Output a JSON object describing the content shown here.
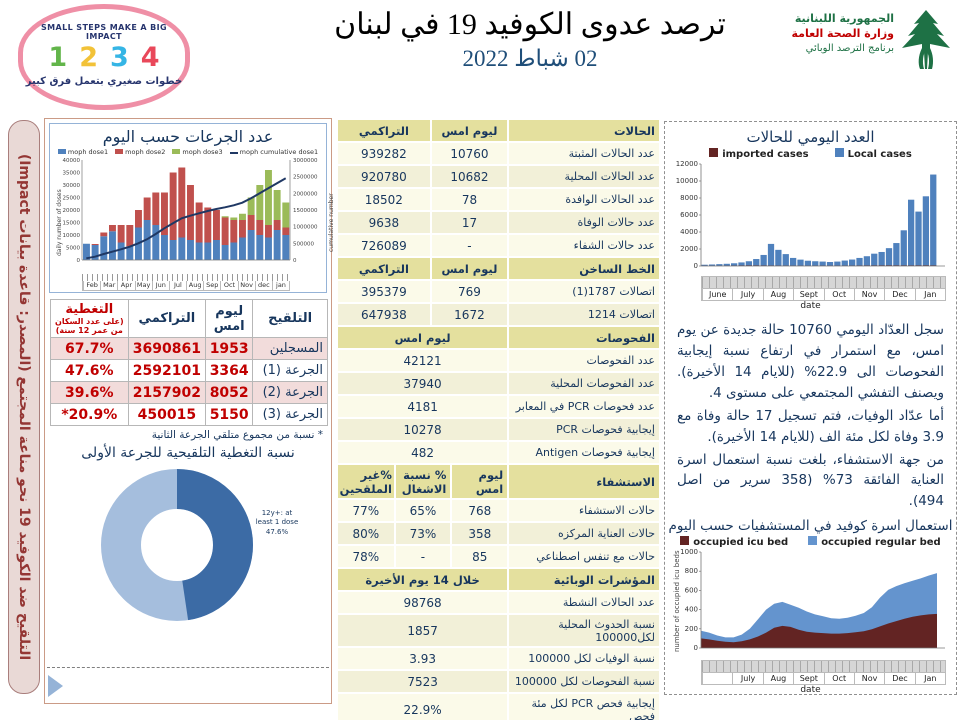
{
  "header": {
    "title": "ترصد عدوى الكوفيد 19 في لبنان",
    "date": "02 شباط 2022",
    "stamp": {
      "top_text": "SMALL STEPS MAKE A BIG IMPACT",
      "digits": [
        "1",
        "2",
        "3",
        "4"
      ],
      "bottom_text": "خطوات صغيري بتعمل فرق كبير"
    },
    "moph": {
      "line1": "الجمهورية اللبنانية",
      "line2": "وزارة الصحة العامة",
      "line3": "برنامج الترصد الوبائي"
    }
  },
  "left_banner": "التلقيح ضد الكوفيد 19  نحو مناعة المجتمع (المصدر: قاعدة بيانات Impact)",
  "vaccination": {
    "chart_title": "عدد الجرعات حسب اليوم",
    "table": {
      "headers": [
        "التلقيح",
        "ليوم امس",
        "التراكمي",
        "التغطية"
      ],
      "coverage_subnote": "(على عدد السكان من عمر 12 سنة)",
      "rows": [
        [
          "المسجلين",
          "1953",
          "3690861",
          "67.7%"
        ],
        [
          "الجرعة (1)",
          "3364",
          "2592101",
          "47.6%"
        ],
        [
          "الجرعة (2)",
          "8052",
          "2157902",
          "39.6%"
        ],
        [
          "الجرعة (3)",
          "5150",
          "450015",
          "20.9%*"
        ]
      ],
      "note": "* نسبة من مجموع متلقي الجرعة الثانية"
    },
    "donut_title": "نسبة التغطية التلقيحية للجرعة الأولى",
    "donut_label": "12y+: at least 1 dose 47.6%"
  },
  "main_table": {
    "sections": [
      {
        "cols": 3,
        "header": [
          "الحالات",
          "ليوم امس",
          "التراكمي"
        ],
        "rows": [
          [
            "عدد الحالات المثبتة",
            "10760",
            "939282"
          ],
          [
            "عدد الحالات المحلية",
            "10682",
            "920780"
          ],
          [
            "عدد الحالات الوافدة",
            "78",
            "18502"
          ],
          [
            "عدد حالات الوفاة",
            "17",
            "9638"
          ],
          [
            "عدد حالات الشفاء",
            "-",
            "726089"
          ]
        ]
      },
      {
        "cols": 3,
        "header": [
          "الخط الساخن",
          "ليوم امس",
          "التراكمي"
        ],
        "rows": [
          [
            "اتصالات 1787(1)",
            "769",
            "395379"
          ],
          [
            "اتصالات 1214",
            "1672",
            "647938"
          ]
        ]
      },
      {
        "cols": 2,
        "header": [
          "الفحوصات",
          "ليوم امس"
        ],
        "rows": [
          [
            "عدد الفحوصات",
            "42121"
          ],
          [
            "عدد الفحوصات المحلية",
            "37940"
          ],
          [
            "عدد فحوصات PCR في المعابر",
            "4181"
          ],
          [
            "إيجابية فحوصات PCR",
            "10278"
          ],
          [
            "إيجابية فحوصات Antigen",
            "482"
          ]
        ]
      },
      {
        "cols": 4,
        "header": [
          "الاستشفاء",
          "ليوم امس",
          "% نسبة الاشغال",
          "%غير الملقحين"
        ],
        "rows": [
          [
            "حالات الاستشفاء",
            "768",
            "65%",
            "77%"
          ],
          [
            "حالات العناية المركزه",
            "358",
            "73%",
            "80%"
          ],
          [
            "حالات مع تنفس اصطناعي",
            "85",
            "-",
            "78%"
          ]
        ]
      },
      {
        "cols": 2,
        "header": [
          "المؤشرات الوبائية",
          "خلال 14 يوم الأخيرة"
        ],
        "rows": [
          [
            "عدد الحالات النشطة",
            "98768"
          ],
          [
            "نسبة الحدوث المحلية لكل100000",
            "1857"
          ],
          [
            "نسبة الوفيات لكل 100000",
            "3.93"
          ],
          [
            "نسبة الفحوصات لكل 100000",
            "7523"
          ],
          [
            "إيجابية فحص PCR لكل مئة فحص",
            "22.9%"
          ]
        ]
      }
    ]
  },
  "right_column": {
    "cases_title": "العدد اليومي للحالات",
    "cases_legend": [
      "imported cases",
      "Local cases"
    ],
    "beds_title": "استعمال اسرة كوفيد في المستشفيات حسب اليوم",
    "beds_legend": [
      "occupied icu bed",
      "occupied regular bed"
    ],
    "date_axis_label": "date",
    "beds_y_label": "number of occupied icu beds"
  },
  "commentary": [
    "سجل العدّاد اليومي 10760 حالة جديدة عن يوم امس، مع استمرار في ارتفاع نسبة إيجابية الفحوصات الى 22.9% (للايام 14 الأخيرة). ويصنف التفشي المجتمعي على مستوى 4.",
    "أما عدّاد الوفيات، فتم تسجيل 17 حالة وفاة مع 3.9 وفاة لكل مئة الف (للايام 14 الأخيرة).",
    "من جهة الاستشفاء، بلغت نسبة استعمال اسرة العناية الفائقة 73% (358 سرير من اصل 494)."
  ],
  "colors": {
    "navy": "#17365d",
    "red": "#c00000",
    "dose1": "#4f81bd",
    "dose2": "#c0504d",
    "dose3": "#9bbb59",
    "cumulative_line": "#1f3864",
    "local_cases": "#4f81bd",
    "imported_cases": "#632423",
    "icu_bed": "#632423",
    "regular_bed": "#6494ce",
    "donut_dark": "#3c6ba5",
    "donut_light": "#a5bedd"
  },
  "chart_data": [
    {
      "id": "doses_by_day",
      "type": "bar",
      "title": "عدد الجرعات حسب اليوم",
      "legend": [
        "moph dose1",
        "moph dose2",
        "moph dose3",
        "moph cumulative dose1"
      ],
      "ylabel_left": "daily number of doses",
      "ylabel_right": "cumulative number",
      "ylim_left": [
        0,
        40000
      ],
      "yticks_left": [
        0,
        5000,
        10000,
        15000,
        20000,
        25000,
        30000,
        35000,
        40000
      ],
      "ylim_right": [
        0,
        3000000
      ],
      "yticks_right": [
        0,
        500000,
        1000000,
        1500000,
        2000000,
        2500000,
        3000000
      ],
      "months": [
        "Feb",
        "Mar",
        "Apr",
        "May",
        "Jun",
        "Jul",
        "Aug",
        "Sep",
        "Oct",
        "Nov",
        "dec",
        "jan"
      ],
      "series": [
        {
          "name": "moph dose1",
          "values": [
            6500,
            6000,
            9500,
            11500,
            7000,
            5500,
            13000,
            16000,
            14000,
            10000,
            8000,
            9000,
            8000,
            7000,
            7000,
            8000,
            6000,
            7000,
            9000,
            12000,
            10000,
            9000,
            12000,
            10000
          ]
        },
        {
          "name": "moph dose2",
          "values": [
            0,
            400,
            1500,
            2500,
            7000,
            8500,
            7000,
            9000,
            13000,
            17000,
            27000,
            28000,
            22000,
            16000,
            14000,
            12000,
            11000,
            9000,
            7000,
            6000,
            6000,
            5000,
            4000,
            3000
          ]
        },
        {
          "name": "moph dose3",
          "values": [
            0,
            0,
            0,
            0,
            0,
            0,
            0,
            0,
            0,
            0,
            0,
            0,
            0,
            0,
            0,
            0,
            500,
            1000,
            2500,
            7000,
            14000,
            22000,
            12000,
            10000
          ]
        },
        {
          "name": "moph cumulative dose1",
          "type": "line",
          "values": [
            50000,
            100000,
            180000,
            250000,
            320000,
            400000,
            500000,
            620000,
            780000,
            950000,
            1100000,
            1250000,
            1330000,
            1400000,
            1470000,
            1530000,
            1580000,
            1640000,
            1720000,
            1850000,
            2000000,
            2150000,
            2300000,
            2450000
          ]
        }
      ]
    },
    {
      "id": "daily_cases",
      "type": "bar",
      "title": "العدد اليومي للحالات",
      "legend": [
        "imported cases",
        "Local cases"
      ],
      "xlabel": "date",
      "ylim": [
        0,
        12000
      ],
      "yticks": [
        0,
        2000,
        4000,
        6000,
        8000,
        10000,
        12000
      ],
      "months": [
        "June",
        "July",
        "Aug",
        "Sept",
        "Oct",
        "Nov",
        "Dec",
        "Jan"
      ],
      "series": [
        {
          "name": "Local cases",
          "values": [
            150,
            180,
            220,
            260,
            320,
            420,
            560,
            820,
            1300,
            2600,
            1900,
            1400,
            950,
            750,
            620,
            560,
            520,
            470,
            520,
            640,
            760,
            950,
            1150,
            1450,
            1650,
            2100,
            2700,
            4200,
            7800,
            6400,
            8200,
            10760
          ]
        },
        {
          "name": "imported cases",
          "values": [
            40,
            35,
            30,
            45,
            60,
            70,
            80,
            75,
            70,
            65,
            60,
            55,
            50,
            45,
            40,
            45,
            50,
            45,
            50,
            55,
            60,
            65,
            70,
            75,
            80,
            85,
            80,
            78,
            75,
            80,
            85,
            78
          ]
        }
      ]
    },
    {
      "id": "occupied_beds",
      "type": "area",
      "title": "استعمال اسرة كوفيد في المستشفيات حسب اليوم",
      "legend": [
        "occupied icu bed",
        "occupied regular bed"
      ],
      "xlabel": "date",
      "ylabel": "number of occupied icu beds",
      "ylim": [
        0,
        1000
      ],
      "yticks": [
        0,
        200,
        400,
        600,
        800,
        1000
      ],
      "months": [
        "",
        "July",
        "Aug",
        "Sept",
        "Oct",
        "Nov",
        "Dec",
        "Jan"
      ],
      "series": [
        {
          "name": "occupied icu bed",
          "values": [
            100,
            90,
            75,
            65,
            60,
            70,
            90,
            120,
            160,
            210,
            230,
            220,
            190,
            170,
            160,
            155,
            150,
            150,
            155,
            165,
            175,
            195,
            225,
            255,
            280,
            305,
            325,
            340,
            350,
            355
          ]
        },
        {
          "name": "occupied regular bed",
          "values": [
            80,
            70,
            55,
            45,
            50,
            70,
            110,
            180,
            240,
            250,
            250,
            230,
            230,
            210,
            190,
            175,
            160,
            155,
            160,
            170,
            190,
            230,
            300,
            350,
            365,
            370,
            375,
            385,
            405,
            425
          ]
        }
      ]
    },
    {
      "id": "first_dose_coverage",
      "type": "pie",
      "title": "نسبة التغطية التلقيحية للجرعة الأولى",
      "labels": [
        "12y+: at least 1 dose",
        "rest"
      ],
      "values": [
        47.6,
        52.4
      ]
    }
  ]
}
